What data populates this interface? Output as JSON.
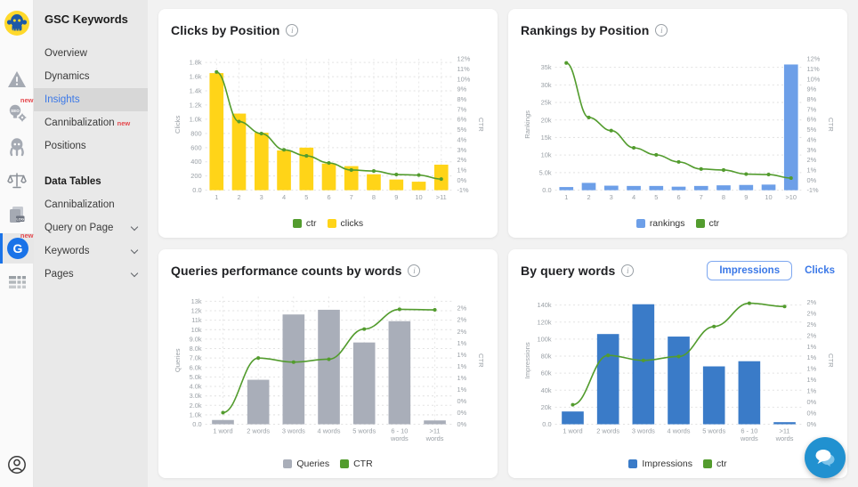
{
  "sidebar": {
    "title": "GSC Keywords",
    "badge_new": "new",
    "items": [
      {
        "label": "Overview"
      },
      {
        "label": "Dynamics"
      },
      {
        "label": "Insights",
        "active": true
      },
      {
        "label": "Cannibalization",
        "badge": "new"
      },
      {
        "label": "Positions"
      },
      {
        "label": "Data Tables",
        "section": true
      },
      {
        "label": "Cannibalization"
      },
      {
        "label": "Query on Page",
        "chevron": true
      },
      {
        "label": "Keywords",
        "chevron": true
      },
      {
        "label": "Pages",
        "chevron": true
      }
    ],
    "rail_icons": [
      "octopus-logo",
      "warning-triangle",
      "seo-bulb-gear",
      "octopus",
      "scales",
      "log-pages",
      "gsc-g",
      "data-table",
      "account"
    ]
  },
  "icons": {
    "info": "i",
    "log_text": "LOG",
    "g_letter": "G",
    "seo_text": "SEO"
  },
  "colors": {
    "accent_blue": "#3b78e7",
    "badge_red": "#e5484d",
    "bar_yellow": "#FFD418",
    "line_green": "#539C2E",
    "bar_blue_light": "#6D9FE8",
    "bar_blue_dark": "#3A7BC8",
    "bar_gray": "#A9AEB9",
    "chat_blue": "#2191d0"
  },
  "chart_data": [
    {
      "type": "bar+line",
      "title": "Clicks by Position",
      "vgrid": true,
      "categories": [
        [
          "1"
        ],
        [
          "2"
        ],
        [
          "3"
        ],
        [
          "4"
        ],
        [
          "5"
        ],
        [
          "6"
        ],
        [
          "7"
        ],
        [
          "8"
        ],
        [
          "9"
        ],
        [
          "10"
        ],
        [
          ">11"
        ]
      ],
      "bar_series": {
        "name": "clicks",
        "color": "#FFD418",
        "values": [
          1650,
          1080,
          810,
          560,
          600,
          375,
          340,
          225,
          150,
          120,
          360
        ]
      },
      "line_series": {
        "name": "ctr",
        "color": "#539C2E",
        "values": [
          10.7,
          5.8,
          4.6,
          3.0,
          2.4,
          1.7,
          1.0,
          0.9,
          0.55,
          0.5,
          0.1
        ]
      },
      "left_axis": {
        "label": "Clicks",
        "scale_max": 1850,
        "ticks": [
          {
            "v": 0,
            "t": "0.0"
          },
          {
            "v": 200,
            "t": "200"
          },
          {
            "v": 400,
            "t": "400"
          },
          {
            "v": 600,
            "t": "600"
          },
          {
            "v": 800,
            "t": "800"
          },
          {
            "v": 1000,
            "t": "1.0k"
          },
          {
            "v": 1200,
            "t": "1.2k"
          },
          {
            "v": 1400,
            "t": "1.4k"
          },
          {
            "v": 1600,
            "t": "1.6k"
          },
          {
            "v": 1800,
            "t": "1.8k"
          }
        ]
      },
      "right_axis": {
        "label": "CTR",
        "min": -1,
        "max": 12,
        "ticks": [
          {
            "v": -1,
            "t": "-1%"
          },
          {
            "v": 0,
            "t": "0%"
          },
          {
            "v": 1,
            "t": "1%"
          },
          {
            "v": 2,
            "t": "2%"
          },
          {
            "v": 3,
            "t": "3%"
          },
          {
            "v": 4,
            "t": "4%"
          },
          {
            "v": 5,
            "t": "5%"
          },
          {
            "v": 6,
            "t": "6%"
          },
          {
            "v": 7,
            "t": "7%"
          },
          {
            "v": 8,
            "t": "8%"
          },
          {
            "v": 9,
            "t": "9%"
          },
          {
            "v": 10,
            "t": "10%"
          },
          {
            "v": 11,
            "t": "11%"
          },
          {
            "v": 12,
            "t": "12%"
          }
        ]
      },
      "legend": [
        {
          "label": "ctr",
          "color": "#539C2E"
        },
        {
          "label": "clicks",
          "color": "#FFD418"
        }
      ]
    },
    {
      "type": "bar+line",
      "title": "Rankings by Position",
      "vgrid": false,
      "categories": [
        [
          "1"
        ],
        [
          "2"
        ],
        [
          "3"
        ],
        [
          "4"
        ],
        [
          "5"
        ],
        [
          "6"
        ],
        [
          "7"
        ],
        [
          "8"
        ],
        [
          "9"
        ],
        [
          "10"
        ],
        [
          ">10"
        ]
      ],
      "bar_series": {
        "name": "rankings",
        "color": "#6D9FE8",
        "values": [
          900,
          2100,
          1300,
          1200,
          1200,
          1000,
          1200,
          1400,
          1500,
          1600,
          35800
        ]
      },
      "line_series": {
        "name": "ctr",
        "color": "#539C2E",
        "values": [
          11.6,
          6.2,
          4.9,
          3.2,
          2.5,
          1.8,
          1.1,
          1.0,
          0.6,
          0.55,
          0.2
        ]
      },
      "left_axis": {
        "label": "Rankings",
        "scale_max": 37400,
        "ticks": [
          {
            "v": 0,
            "t": "0.0"
          },
          {
            "v": 5000,
            "t": "5.0k"
          },
          {
            "v": 10000,
            "t": "10k"
          },
          {
            "v": 15000,
            "t": "15k"
          },
          {
            "v": 20000,
            "t": "20k"
          },
          {
            "v": 25000,
            "t": "25k"
          },
          {
            "v": 30000,
            "t": "30k"
          },
          {
            "v": 35000,
            "t": "35k"
          }
        ]
      },
      "right_axis": {
        "label": "CTR",
        "min": -1,
        "max": 12,
        "ticks": [
          {
            "v": -1,
            "t": "-1%"
          },
          {
            "v": 0,
            "t": "0%"
          },
          {
            "v": 1,
            "t": "1%"
          },
          {
            "v": 2,
            "t": "2%"
          },
          {
            "v": 3,
            "t": "3%"
          },
          {
            "v": 4,
            "t": "4%"
          },
          {
            "v": 5,
            "t": "5%"
          },
          {
            "v": 6,
            "t": "6%"
          },
          {
            "v": 7,
            "t": "7%"
          },
          {
            "v": 8,
            "t": "8%"
          },
          {
            "v": 9,
            "t": "9%"
          },
          {
            "v": 10,
            "t": "10%"
          },
          {
            "v": 11,
            "t": "11%"
          },
          {
            "v": 12,
            "t": "12%"
          }
        ]
      },
      "legend": [
        {
          "label": "rankings",
          "color": "#6D9FE8"
        },
        {
          "label": "ctr",
          "color": "#539C2E"
        }
      ]
    },
    {
      "type": "bar+line",
      "title": "Queries performance counts by words",
      "vgrid": true,
      "categories": [
        [
          "1 word"
        ],
        [
          "2 words"
        ],
        [
          "3 words"
        ],
        [
          "4 words"
        ],
        [
          "5 words"
        ],
        [
          "6 - 10",
          "words"
        ],
        [
          ">11",
          "words"
        ]
      ],
      "bar_series": {
        "name": "Queries",
        "color": "#A9AEB9",
        "values": [
          450,
          4700,
          11600,
          12100,
          8650,
          10900,
          400
        ]
      },
      "line_series": {
        "name": "CTR",
        "color": "#539C2E",
        "values": [
          0.2,
          1.14,
          1.07,
          1.12,
          1.64,
          1.98,
          1.97
        ]
      },
      "left_axis": {
        "label": "Queries",
        "scale_max": 13500,
        "ticks": [
          {
            "v": 0,
            "t": "0.0"
          },
          {
            "v": 1000,
            "t": "1.0k"
          },
          {
            "v": 2000,
            "t": "2.0k"
          },
          {
            "v": 3000,
            "t": "3.0k"
          },
          {
            "v": 4000,
            "t": "4.0k"
          },
          {
            "v": 5000,
            "t": "5.0k"
          },
          {
            "v": 6000,
            "t": "6.0k"
          },
          {
            "v": 7000,
            "t": "7.0k"
          },
          {
            "v": 8000,
            "t": "8.0k"
          },
          {
            "v": 9000,
            "t": "9.0k"
          },
          {
            "v": 10000,
            "t": "10k"
          },
          {
            "v": 11000,
            "t": "11k"
          },
          {
            "v": 12000,
            "t": "12k"
          },
          {
            "v": 13000,
            "t": "13k"
          }
        ]
      },
      "right_axis": {
        "label": "CTR",
        "min": 0,
        "max": 2.2,
        "ticks": [
          {
            "v": 0,
            "t": "0%"
          },
          {
            "v": 0.2,
            "t": "0%"
          },
          {
            "v": 0.4,
            "t": "0%"
          },
          {
            "v": 0.6,
            "t": "1%"
          },
          {
            "v": 0.8,
            "t": "1%"
          },
          {
            "v": 1.0,
            "t": "1%"
          },
          {
            "v": 1.2,
            "t": "1%"
          },
          {
            "v": 1.4,
            "t": "1%"
          },
          {
            "v": 1.6,
            "t": "2%"
          },
          {
            "v": 1.8,
            "t": "2%"
          },
          {
            "v": 2.0,
            "t": "2%"
          }
        ]
      },
      "legend": [
        {
          "label": "Queries",
          "color": "#A9AEB9"
        },
        {
          "label": "CTR",
          "color": "#539C2E"
        }
      ]
    },
    {
      "type": "bar+line",
      "title": "By query words",
      "vgrid": false,
      "toggle": {
        "impressions_label": "Impressions",
        "clicks_label": "Clicks",
        "active": "Impressions"
      },
      "categories": [
        [
          "1 word"
        ],
        [
          "2 words"
        ],
        [
          "3 words"
        ],
        [
          "4 words"
        ],
        [
          "5 words"
        ],
        [
          "6 - 10",
          "words"
        ],
        [
          ">11",
          "words"
        ]
      ],
      "bar_series": {
        "name": "Impressions",
        "color": "#3A7BC8",
        "values": [
          15000,
          106000,
          141000,
          103000,
          68000,
          74000,
          2500
        ]
      },
      "line_series": {
        "name": "ctr",
        "color": "#539C2E",
        "values": [
          0.35,
          1.24,
          1.15,
          1.22,
          1.76,
          2.18,
          2.12
        ]
      },
      "left_axis": {
        "label": "Impressions",
        "scale_max": 150000,
        "ticks": [
          {
            "v": 0,
            "t": "0.0"
          },
          {
            "v": 20000,
            "t": "20k"
          },
          {
            "v": 40000,
            "t": "40k"
          },
          {
            "v": 60000,
            "t": "60k"
          },
          {
            "v": 80000,
            "t": "80k"
          },
          {
            "v": 100000,
            "t": "100k"
          },
          {
            "v": 120000,
            "t": "120k"
          },
          {
            "v": 140000,
            "t": "140k"
          }
        ]
      },
      "right_axis": {
        "label": "CTR",
        "min": 0,
        "max": 2.3,
        "ticks": [
          {
            "v": 0,
            "t": "0%"
          },
          {
            "v": 0.2,
            "t": "0%"
          },
          {
            "v": 0.4,
            "t": "0%"
          },
          {
            "v": 0.6,
            "t": "1%"
          },
          {
            "v": 0.8,
            "t": "1%"
          },
          {
            "v": 1.0,
            "t": "1%"
          },
          {
            "v": 1.2,
            "t": "1%"
          },
          {
            "v": 1.4,
            "t": "1%"
          },
          {
            "v": 1.6,
            "t": "2%"
          },
          {
            "v": 1.8,
            "t": "2%"
          },
          {
            "v": 2.0,
            "t": "2%"
          },
          {
            "v": 2.2,
            "t": "2%"
          }
        ]
      },
      "legend": [
        {
          "label": "Impressions",
          "color": "#3A7BC8"
        },
        {
          "label": "ctr",
          "color": "#539C2E"
        }
      ]
    }
  ]
}
